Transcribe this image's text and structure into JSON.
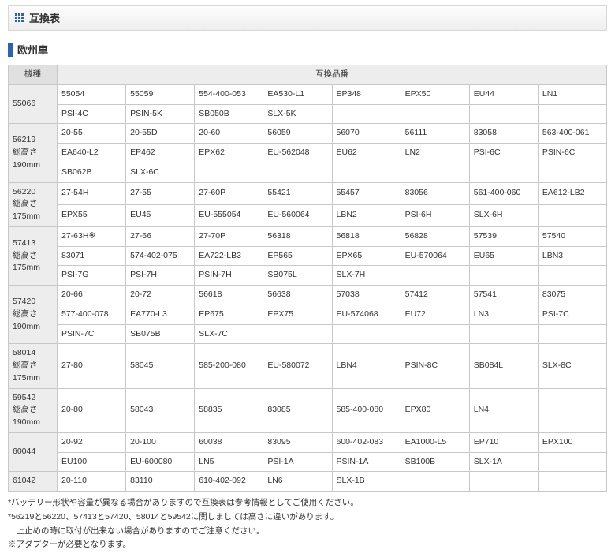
{
  "section_title": "互換表",
  "sub_title": "欧州車",
  "header_model": "機種",
  "header_parts": "互換品番",
  "rows": [
    {
      "model": "55066",
      "cells": [
        [
          "55054",
          "55059",
          "554-400-053",
          "EA530-L1",
          "EP348",
          "EPX50",
          "EU44",
          "LN1"
        ],
        [
          "PSI-4C",
          "PSIN-5K",
          "SB050B",
          "SLX-5K",
          "",
          "",
          "",
          ""
        ]
      ]
    },
    {
      "model": "56219\n総高さ\n190mm",
      "cells": [
        [
          "20-55",
          "20-55D",
          "20-60",
          "56059",
          "56070",
          "56111",
          "83058",
          "563-400-061"
        ],
        [
          "EA640-L2",
          "EP462",
          "EPX62",
          "EU-562048",
          "EU62",
          "LN2",
          "PSI-6C",
          "PSIN-6C"
        ],
        [
          "SB062B",
          "SLX-6C",
          "",
          "",
          "",
          "",
          "",
          ""
        ]
      ]
    },
    {
      "model": "56220\n総高さ\n175mm",
      "cells": [
        [
          "27-54H",
          "27-55",
          "27-60P",
          "55421",
          "55457",
          "83056",
          "561-400-060",
          "EA612-LB2"
        ],
        [
          "EPX55",
          "EU45",
          "EU-555054",
          "EU-560064",
          "LBN2",
          "PSI-6H",
          "SLX-6H",
          ""
        ]
      ]
    },
    {
      "model": "57413\n総高さ\n175mm",
      "cells": [
        [
          "27-63H※",
          "27-66",
          "27-70P",
          "56318",
          "56818",
          "56828",
          "57539",
          "57540"
        ],
        [
          "83071",
          "574-402-075",
          "EA722-LB3",
          "EP565",
          "EPX65",
          "EU-570064",
          "EU65",
          "LBN3"
        ],
        [
          "PSI-7G",
          "PSI-7H",
          "PSIN-7H",
          "SB075L",
          "SLX-7H",
          "",
          "",
          ""
        ]
      ]
    },
    {
      "model": "57420\n総高さ\n190mm",
      "cells": [
        [
          "20-66",
          "20-72",
          "56618",
          "56638",
          "57038",
          "57412",
          "57541",
          "83075"
        ],
        [
          "577-400-078",
          "EA770-L3",
          "EP675",
          "EPX75",
          "EU-574068",
          "EU72",
          "LN3",
          "PSI-7C"
        ],
        [
          "PSIN-7C",
          "SB075B",
          "SLX-7C",
          "",
          "",
          "",
          "",
          ""
        ]
      ]
    },
    {
      "model": "58014\n総高さ\n175mm",
      "cells": [
        [
          "27-80",
          "58045",
          "585-200-080",
          "EU-580072",
          "LBN4",
          "PSIN-8C",
          "SB084L",
          "SLX-8C"
        ]
      ]
    },
    {
      "model": "59542\n総高さ\n190mm",
      "cells": [
        [
          "20-80",
          "58043",
          "58835",
          "83085",
          "585-400-080",
          "EPX80",
          "LN4",
          ""
        ]
      ]
    },
    {
      "model": "60044",
      "cells": [
        [
          "20-92",
          "20-100",
          "60038",
          "83095",
          "600-402-083",
          "EA1000-L5",
          "EP710",
          "EPX100"
        ],
        [
          "EU100",
          "EU-600080",
          "LN5",
          "PSI-1A",
          "PSIN-1A",
          "SB100B",
          "SLX-1A",
          ""
        ]
      ]
    },
    {
      "model": "61042",
      "cells": [
        [
          "20-110",
          "83110",
          "610-402-092",
          "LN6",
          "SLX-1B",
          "",
          "",
          ""
        ]
      ]
    }
  ],
  "notes": [
    "*バッテリー形状や容量が異なる場合がありますので互換表は参考情報としてご使用ください。",
    "*56219と56220、57413と57420、58014と59542に関しましては高さに違いがあります。",
    "　上止めの時に取付が出来ない場合がありますのでご注意ください。",
    "※アダプターが必要となります。"
  ],
  "colors": {
    "accent": "#2a63b3",
    "border": "#c8c8c8",
    "th_bg": "#ededed",
    "model_bg": "#e0e0e0"
  }
}
